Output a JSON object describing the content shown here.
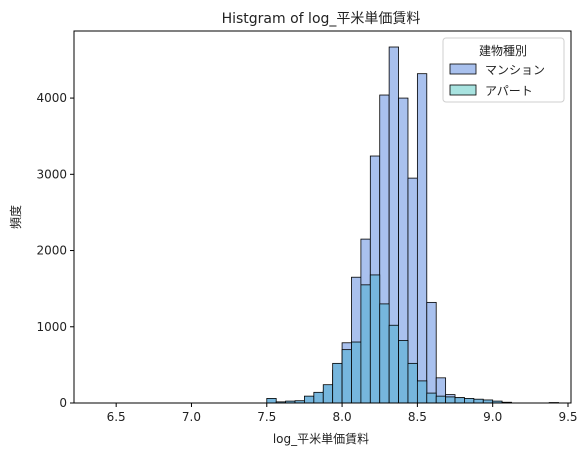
{
  "chart_data": {
    "type": "histogram",
    "title": "Histgram of log_平米単価賃料",
    "xlabel": "log_平米単価賃料",
    "ylabel": "頻度",
    "xlim": [
      6.22,
      9.52
    ],
    "ylim": [
      0,
      4880
    ],
    "xticks": [
      6.5,
      7.0,
      7.5,
      8.0,
      8.5,
      9.0,
      9.5
    ],
    "yticks": [
      0,
      1000,
      2000,
      3000,
      4000
    ],
    "bin_width": 0.0625,
    "legend": {
      "title": "建物種別",
      "placement": "top-right",
      "entries": [
        "マンション",
        "アパート"
      ]
    },
    "series": [
      {
        "name": "マンション",
        "color": "#a9c1ee",
        "bins": [
          {
            "x0": 7.5625,
            "count": 5
          },
          {
            "x0": 7.625,
            "count": 12
          },
          {
            "x0": 7.6875,
            "count": 18
          },
          {
            "x0": 7.75,
            "count": 35
          },
          {
            "x0": 7.8125,
            "count": 75
          },
          {
            "x0": 7.875,
            "count": 160
          },
          {
            "x0": 7.9375,
            "count": 430
          },
          {
            "x0": 8.0,
            "count": 790
          },
          {
            "x0": 8.0625,
            "count": 1650
          },
          {
            "x0": 8.125,
            "count": 2150
          },
          {
            "x0": 8.1875,
            "count": 3240
          },
          {
            "x0": 8.25,
            "count": 4040
          },
          {
            "x0": 8.3125,
            "count": 4670
          },
          {
            "x0": 8.375,
            "count": 4000
          },
          {
            "x0": 8.4375,
            "count": 2950
          },
          {
            "x0": 8.5,
            "count": 4320
          },
          {
            "x0": 8.5625,
            "count": 1320
          },
          {
            "x0": 8.625,
            "count": 330
          },
          {
            "x0": 8.6875,
            "count": 110
          },
          {
            "x0": 8.75,
            "count": 70
          },
          {
            "x0": 8.8125,
            "count": 45
          },
          {
            "x0": 8.875,
            "count": 28
          },
          {
            "x0": 8.9375,
            "count": 15
          },
          {
            "x0": 9.0,
            "count": 8
          },
          {
            "x0": 9.0625,
            "count": 4
          },
          {
            "x0": 9.375,
            "count": 6
          }
        ]
      },
      {
        "name": "アパート",
        "color": "#a8e3e0",
        "bins": [
          {
            "x0": 7.5,
            "count": 60
          },
          {
            "x0": 7.5625,
            "count": 15
          },
          {
            "x0": 7.625,
            "count": 25
          },
          {
            "x0": 7.6875,
            "count": 30
          },
          {
            "x0": 7.75,
            "count": 90
          },
          {
            "x0": 7.8125,
            "count": 140
          },
          {
            "x0": 7.875,
            "count": 240
          },
          {
            "x0": 7.9375,
            "count": 520
          },
          {
            "x0": 8.0,
            "count": 700
          },
          {
            "x0": 8.0625,
            "count": 800
          },
          {
            "x0": 8.125,
            "count": 1550
          },
          {
            "x0": 8.1875,
            "count": 1680
          },
          {
            "x0": 8.25,
            "count": 1300
          },
          {
            "x0": 8.3125,
            "count": 1020
          },
          {
            "x0": 8.375,
            "count": 820
          },
          {
            "x0": 8.4375,
            "count": 520
          },
          {
            "x0": 8.5,
            "count": 290
          },
          {
            "x0": 8.5625,
            "count": 130
          },
          {
            "x0": 8.625,
            "count": 90
          },
          {
            "x0": 8.6875,
            "count": 80
          },
          {
            "x0": 8.75,
            "count": 70
          },
          {
            "x0": 8.8125,
            "count": 60
          },
          {
            "x0": 8.875,
            "count": 50
          },
          {
            "x0": 8.9375,
            "count": 40
          },
          {
            "x0": 9.0,
            "count": 25
          },
          {
            "x0": 9.0625,
            "count": 10
          }
        ]
      }
    ],
    "overlap_color": "#76b6dd"
  }
}
